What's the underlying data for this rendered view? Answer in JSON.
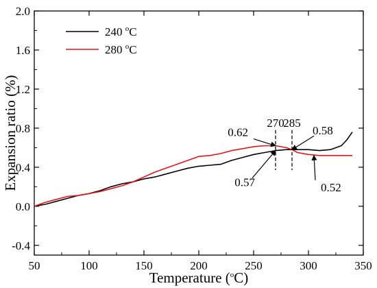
{
  "chart_data": {
    "type": "line",
    "xlabel": "Temperature (oC)",
    "xlabel_parts": {
      "pre": "Temperature (",
      "sup": "o",
      "post": "C)"
    },
    "ylabel": "Expansion ratio (%)",
    "xlim": [
      50,
      350
    ],
    "ylim": [
      -0.5,
      2.0
    ],
    "x_ticks": [
      50,
      100,
      150,
      200,
      250,
      300,
      350
    ],
    "y_ticks": [
      -0.4,
      0.0,
      0.4,
      0.8,
      1.2,
      1.6,
      2.0
    ],
    "y_tick_labels": [
      "-0.4",
      "0.0",
      "0.4",
      "0.8",
      "1.2",
      "1.6",
      "2.0"
    ],
    "grid": false,
    "legend_position": "top-left",
    "series": [
      {
        "name": "240 oC",
        "name_parts": {
          "pre": "240 ",
          "sup": "o",
          "post": "C"
        },
        "color": "#000000",
        "points": [
          [
            50,
            0.0
          ],
          [
            60,
            0.02
          ],
          [
            70,
            0.05
          ],
          [
            80,
            0.08
          ],
          [
            90,
            0.11
          ],
          [
            100,
            0.13
          ],
          [
            110,
            0.16
          ],
          [
            120,
            0.2
          ],
          [
            130,
            0.23
          ],
          [
            140,
            0.25
          ],
          [
            150,
            0.28
          ],
          [
            160,
            0.3
          ],
          [
            170,
            0.33
          ],
          [
            180,
            0.36
          ],
          [
            190,
            0.39
          ],
          [
            200,
            0.41
          ],
          [
            210,
            0.42
          ],
          [
            220,
            0.43
          ],
          [
            230,
            0.47
          ],
          [
            240,
            0.5
          ],
          [
            250,
            0.53
          ],
          [
            260,
            0.55
          ],
          [
            270,
            0.57
          ],
          [
            280,
            0.58
          ],
          [
            290,
            0.58
          ],
          [
            300,
            0.58
          ],
          [
            310,
            0.57
          ],
          [
            320,
            0.58
          ],
          [
            330,
            0.62
          ],
          [
            335,
            0.68
          ],
          [
            340,
            0.76
          ]
        ]
      },
      {
        "name": "280 oC",
        "name_parts": {
          "pre": "280 ",
          "sup": "o",
          "post": "C"
        },
        "color": "#e8111a",
        "points": [
          [
            50,
            0.0
          ],
          [
            60,
            0.04
          ],
          [
            70,
            0.07
          ],
          [
            80,
            0.1
          ],
          [
            90,
            0.11
          ],
          [
            100,
            0.13
          ],
          [
            110,
            0.15
          ],
          [
            120,
            0.18
          ],
          [
            130,
            0.21
          ],
          [
            140,
            0.25
          ],
          [
            150,
            0.3
          ],
          [
            160,
            0.35
          ],
          [
            170,
            0.39
          ],
          [
            180,
            0.43
          ],
          [
            190,
            0.47
          ],
          [
            200,
            0.51
          ],
          [
            210,
            0.52
          ],
          [
            220,
            0.54
          ],
          [
            230,
            0.57
          ],
          [
            240,
            0.59
          ],
          [
            250,
            0.61
          ],
          [
            260,
            0.62
          ],
          [
            270,
            0.62
          ],
          [
            280,
            0.6
          ],
          [
            285,
            0.58
          ],
          [
            290,
            0.55
          ],
          [
            300,
            0.53
          ],
          [
            310,
            0.52
          ],
          [
            320,
            0.52
          ],
          [
            330,
            0.52
          ],
          [
            340,
            0.52
          ]
        ]
      }
    ],
    "annotations": {
      "vlines": [
        {
          "x": 270,
          "label": "270"
        },
        {
          "x": 285,
          "label": "285"
        }
      ],
      "callouts": [
        {
          "text": "0.62",
          "point": [
            270,
            0.62
          ],
          "side": "left-above"
        },
        {
          "text": "0.57",
          "point": [
            270,
            0.57
          ],
          "side": "left-below"
        },
        {
          "text": "0.58",
          "point": [
            285,
            0.58
          ],
          "side": "right-above"
        },
        {
          "text": "0.52",
          "point": [
            305,
            0.52
          ],
          "side": "right-below"
        }
      ]
    }
  }
}
